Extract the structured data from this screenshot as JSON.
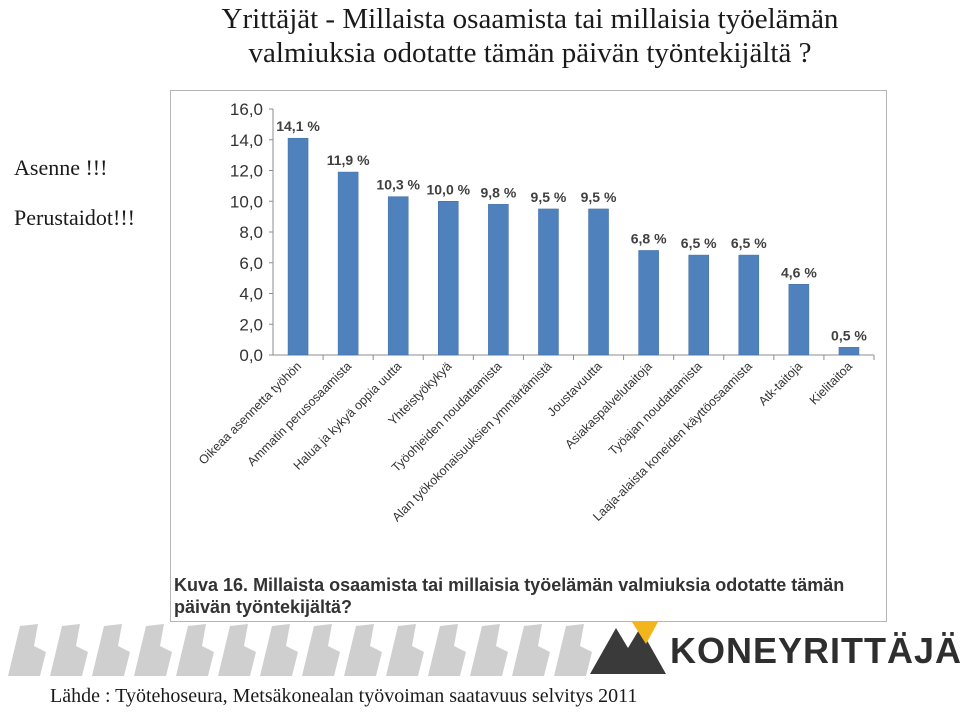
{
  "slide": {
    "title_line1": "Yrittäjät - Millaista osaamista tai millaisia työelämän",
    "title_line2": "valmiuksia odotatte tämän päivän työntekijältä ?",
    "side_notes": [
      {
        "text": "Asenne",
        "emphasis": "!!!"
      },
      {
        "text": "Perustaidot",
        "emphasis": "!!!"
      }
    ],
    "caption_label": "Kuva 16.",
    "caption_text_line1": "Millaista osaamista tai millaisia työelämän valmiuksia odotatte tämän",
    "caption_text_line2": "päivän työntekijältä?",
    "brand_name": "KONEYRITTÄJÄT",
    "source": "Lähde : Työtehoseura, Metsäkonealan työvoiman saatavuus selvitys 2011"
  },
  "colors": {
    "bar": "#4f81bd",
    "bar_edge": "#3f6fa8",
    "grid": "#d9d9d9",
    "axis": "#8c8c8c",
    "brand_yellow": "#f2b51c",
    "band_grey": "#cfcfcf"
  },
  "chart_data": {
    "type": "bar",
    "categories": [
      "Oikeaa asennetta työhön",
      "Ammatin perusosaamista",
      "Halua ja kykyä oppia uutta",
      "Yhteistyökykyä",
      "Työohjeiden noudattamista",
      "Alan työkokonaisuuksien ymmärtämistä",
      "Joustavuutta",
      "Asiakaspalvelutaitoja",
      "Työajan noudattamista",
      "Laaja-alaista koneiden käyttöosaamista",
      "Atk-taitoja",
      "Kielitaitoa"
    ],
    "values": [
      14.1,
      11.9,
      10.3,
      10.0,
      9.8,
      9.5,
      9.5,
      6.8,
      6.5,
      6.5,
      4.6,
      0.5
    ],
    "value_labels": [
      "14,1 %",
      "11,9 %",
      "10,3 %",
      "10,0 %",
      "9,8 %",
      "9,5 %",
      "9,5 %",
      "6,8 %",
      "6,5 %",
      "6,5 %",
      "4,6 %",
      "0,5 %"
    ],
    "y_ticks": [
      "0,0",
      "2,0",
      "4,0",
      "6,0",
      "8,0",
      "10,0",
      "12,0",
      "14,0",
      "16,0"
    ],
    "ylim": [
      0,
      16
    ],
    "grid": false,
    "legend": "none"
  }
}
